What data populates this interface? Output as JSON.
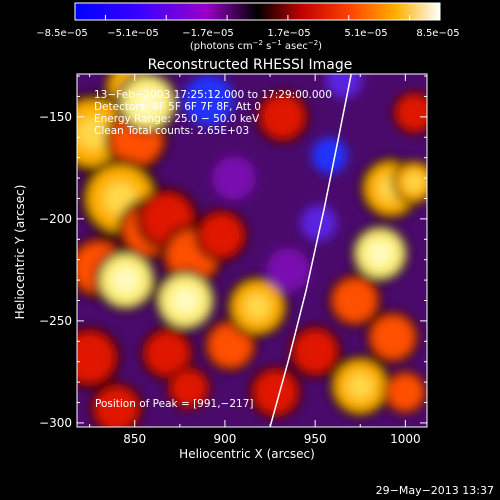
{
  "colorbar": {
    "ticks": [
      "−8.5e−05",
      "−5.1e−05",
      "−1.7e−05",
      "1.7e−05",
      "5.1e−05",
      "8.5e−05"
    ],
    "range": [
      -8.5e-05,
      8.5e-05
    ],
    "unit_main": "(photons cm",
    "unit_exp1": "−2",
    "unit_mid": " s",
    "unit_exp2": "−1",
    "unit_end": " asec",
    "unit_exp3": "−2",
    "unit_close": ")"
  },
  "chart_data": {
    "type": "heatmap",
    "title": "Reconstructed RHESSI Image",
    "xlabel": "Heliocentric X (arcsec)",
    "ylabel": "Heliocentric Y (arcsec)",
    "xlim": [
      818,
      1012
    ],
    "ylim": [
      -302,
      -129
    ],
    "xticks": [
      850,
      900,
      950,
      1000
    ],
    "yticks": [
      -150,
      -200,
      -250,
      -300
    ],
    "xtick_labels": [
      "850",
      "900",
      "950",
      "1000"
    ],
    "ytick_labels": [
      "−150",
      "−200",
      "−250",
      "−300"
    ],
    "info_lines": [
      "13−Feb−2003 17:25:12.000 to 17:29:00.000",
      "Detectors: 4F 5F 6F 7F 8F, Att 0",
      "Energy Range: 25.0 − 50.0 keV",
      "Clean    Total counts: 2.65E+03"
    ],
    "peak_label": "Position of Peak = [991,−217]",
    "limb_curve": [
      [
        925,
        -302
      ],
      [
        935,
        -270
      ],
      [
        945,
        -235
      ],
      [
        955,
        -195
      ],
      [
        963,
        -160
      ],
      [
        970,
        -129
      ]
    ],
    "blobs": [
      {
        "x": 827,
        "y": -158,
        "r": 18,
        "v": 0.85
      },
      {
        "x": 848,
        "y": -135,
        "r": 12,
        "v": 0.8
      },
      {
        "x": 851,
        "y": -161,
        "r": 14,
        "v": 0.7
      },
      {
        "x": 857,
        "y": -143,
        "r": 14,
        "v": 0.9
      },
      {
        "x": 842,
        "y": -190,
        "r": 18,
        "v": 0.8
      },
      {
        "x": 858,
        "y": -205,
        "r": 14,
        "v": 0.7
      },
      {
        "x": 830,
        "y": -224,
        "r": 14,
        "v": 0.7
      },
      {
        "x": 845,
        "y": -230,
        "r": 14,
        "v": 0.9
      },
      {
        "x": 825,
        "y": -268,
        "r": 14,
        "v": 0.55
      },
      {
        "x": 840,
        "y": -293,
        "r": 12,
        "v": 0.55
      },
      {
        "x": 868,
        "y": -200,
        "r": 14,
        "v": 0.5
      },
      {
        "x": 882,
        "y": -218,
        "r": 14,
        "v": 0.6
      },
      {
        "x": 878,
        "y": -240,
        "r": 14,
        "v": 0.9
      },
      {
        "x": 898,
        "y": -208,
        "r": 12,
        "v": 0.5
      },
      {
        "x": 868,
        "y": -266,
        "r": 12,
        "v": 0.5
      },
      {
        "x": 880,
        "y": -283,
        "r": 10,
        "v": 0.45
      },
      {
        "x": 903,
        "y": -262,
        "r": 12,
        "v": 0.6
      },
      {
        "x": 918,
        "y": -243,
        "r": 14,
        "v": 0.75
      },
      {
        "x": 932,
        "y": -150,
        "r": 12,
        "v": 0.5
      },
      {
        "x": 928,
        "y": -285,
        "r": 12,
        "v": 0.5
      },
      {
        "x": 950,
        "y": -265,
        "r": 12,
        "v": 0.45
      },
      {
        "x": 992,
        "y": -185,
        "r": 14,
        "v": 0.85
      },
      {
        "x": 1005,
        "y": -182,
        "r": 10,
        "v": 0.85
      },
      {
        "x": 986,
        "y": -217,
        "r": 13,
        "v": 1.0
      },
      {
        "x": 972,
        "y": -240,
        "r": 12,
        "v": 0.6
      },
      {
        "x": 993,
        "y": -258,
        "r": 12,
        "v": 0.7
      },
      {
        "x": 975,
        "y": -282,
        "r": 14,
        "v": 0.8
      },
      {
        "x": 1000,
        "y": -285,
        "r": 10,
        "v": 0.7
      },
      {
        "x": 1005,
        "y": -148,
        "r": 10,
        "v": 0.45
      },
      {
        "x": 891,
        "y": -142,
        "r": 14,
        "v": -0.55
      },
      {
        "x": 958,
        "y": -169,
        "r": 10,
        "v": -0.5
      },
      {
        "x": 952,
        "y": -202,
        "r": 10,
        "v": -0.35
      },
      {
        "x": 966,
        "y": -132,
        "r": 10,
        "v": -0.4
      },
      {
        "x": 905,
        "y": -180,
        "r": 12,
        "v": -0.25
      },
      {
        "x": 935,
        "y": -225,
        "r": 12,
        "v": -0.25
      }
    ]
  },
  "footer": {
    "date": "29−May−2013 13:37"
  }
}
